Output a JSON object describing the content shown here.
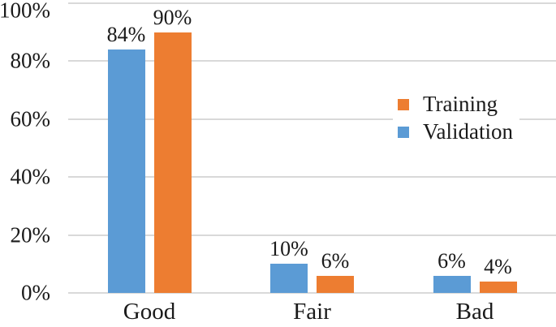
{
  "chart_data": {
    "type": "bar",
    "title": "",
    "xlabel": "",
    "ylabel": "",
    "categories": [
      "Good",
      "Fair",
      "Bad"
    ],
    "series": [
      {
        "name": "Validation",
        "color": "#5B9BD5",
        "values": [
          84,
          10,
          6
        ]
      },
      {
        "name": "Training",
        "color": "#ED7D31",
        "values": [
          90,
          6,
          4
        ]
      }
    ],
    "data_labels": [
      [
        "84%",
        "10%",
        "6%"
      ],
      [
        "90%",
        "6%",
        "4%"
      ]
    ],
    "y_ticks": [
      {
        "label": "0%",
        "value": 0
      },
      {
        "label": "20%",
        "value": 20
      },
      {
        "label": "40%",
        "value": 40
      },
      {
        "label": "60%",
        "value": 60
      },
      {
        "label": "80%",
        "value": 80
      },
      {
        "label": "100%",
        "value": 100
      }
    ],
    "ylim": [
      0,
      100
    ],
    "grid": true,
    "legend": {
      "position": "right",
      "entries": [
        {
          "label": "Training",
          "color": "#ED7D31"
        },
        {
          "label": "Validation",
          "color": "#5B9BD5"
        }
      ]
    }
  },
  "colors": {
    "background": "#FFFFFF",
    "gridline": "#D9D9D9",
    "text": "#1A1A1A"
  }
}
